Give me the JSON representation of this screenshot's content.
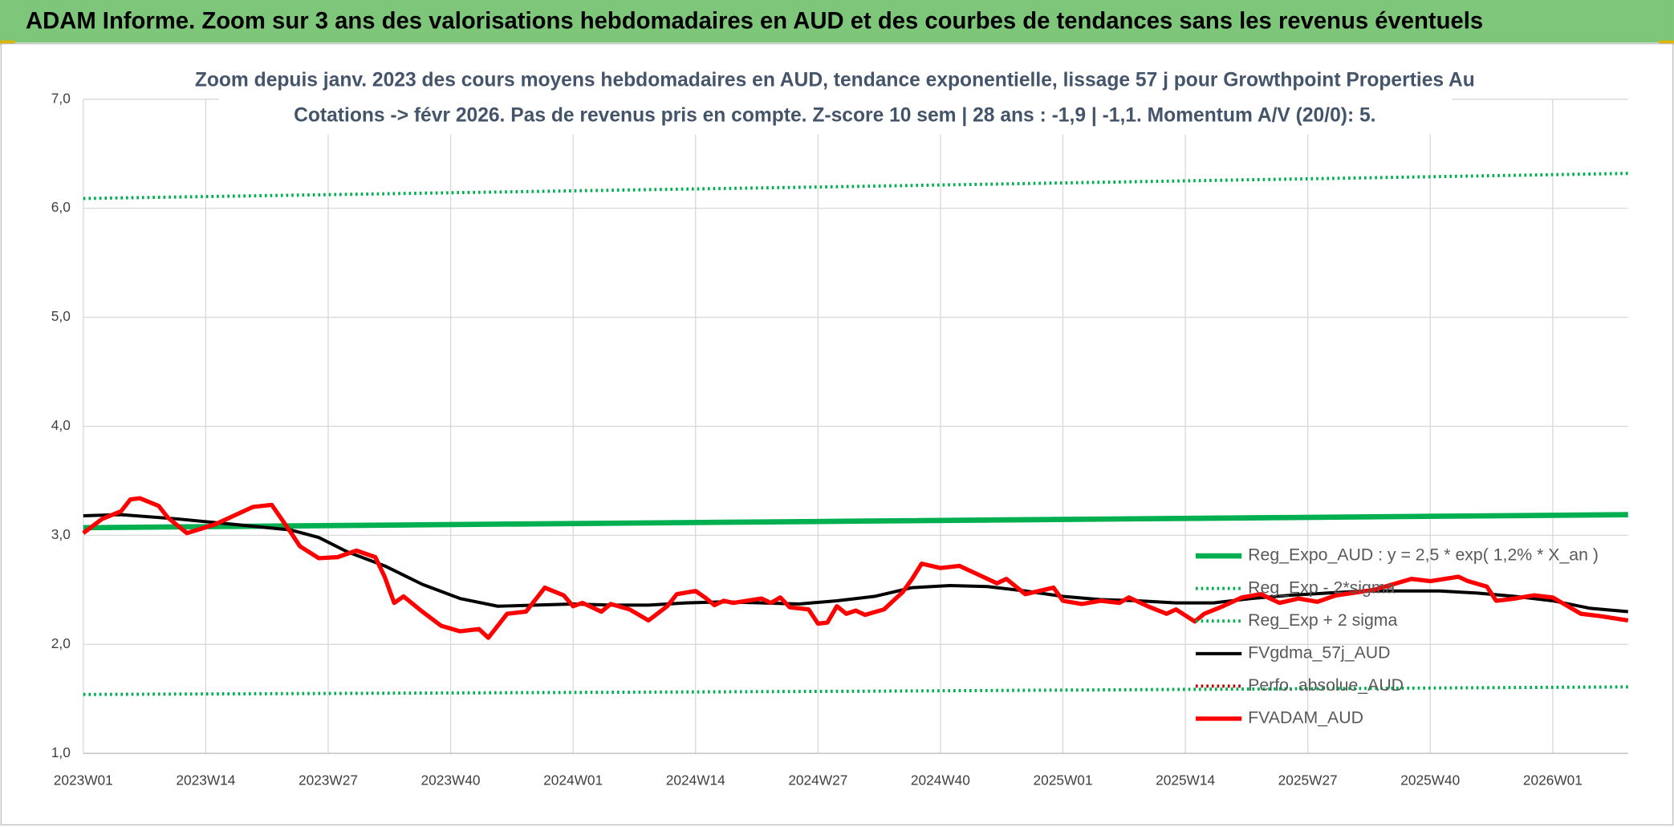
{
  "header": {
    "title": "ADAM Informe. Zoom sur 3 ans des valorisations hebdomadaires en AUD et des courbes de tendances sans les revenus éventuels"
  },
  "chart_data": {
    "type": "line",
    "title": "Zoom depuis janv. 2023 des cours moyens hebdomadaires en AUD, tendance exponentielle, lissage 57 j pour Growthpoint Properties Au",
    "subtitle": "Cotations -> févr 2026. Pas de revenus pris en compte. Z-score 10 sem | 28 ans : -1,9 | -1,1. Momentum A/V (20/0): 5.",
    "xlim": [
      0,
      164
    ],
    "xticks": [
      {
        "value": 0,
        "label": "2023W01"
      },
      {
        "value": 13,
        "label": "2023W14"
      },
      {
        "value": 26,
        "label": "2023W27"
      },
      {
        "value": 39,
        "label": "2023W40"
      },
      {
        "value": 52,
        "label": "2024W01"
      },
      {
        "value": 65,
        "label": "2024W14"
      },
      {
        "value": 78,
        "label": "2024W27"
      },
      {
        "value": 91,
        "label": "2024W40"
      },
      {
        "value": 104,
        "label": "2025W01"
      },
      {
        "value": 117,
        "label": "2025W14"
      },
      {
        "value": 130,
        "label": "2025W27"
      },
      {
        "value": 143,
        "label": "2025W40"
      },
      {
        "value": 156,
        "label": "2026W01"
      }
    ],
    "ylim": [
      1,
      7
    ],
    "yticks": [
      {
        "value": 1,
        "label": "1,0"
      },
      {
        "value": 2,
        "label": "2,0"
      },
      {
        "value": 3,
        "label": "3,0"
      },
      {
        "value": 4,
        "label": "4,0"
      },
      {
        "value": 5,
        "label": "5,0"
      },
      {
        "value": 6,
        "label": "6,0"
      },
      {
        "value": 7,
        "label": "7,0"
      }
    ],
    "grid": true,
    "legend": "right",
    "series": [
      {
        "name": "Reg_Expo_AUD : y = 2,5 * exp( 1,2% *  X_an )",
        "color": "#00b050",
        "style": "solid",
        "x": [
          0,
          82,
          164
        ],
        "values": [
          3.07,
          3.13,
          3.19
        ]
      },
      {
        "name": "Reg_Exp - 2*sigma",
        "color": "#00b050",
        "style": "dotted",
        "x": [
          0,
          82,
          164
        ],
        "values": [
          1.54,
          1.57,
          1.61
        ]
      },
      {
        "name": "Reg_Exp + 2 sigma",
        "color": "#00b050",
        "style": "dotted",
        "x": [
          0,
          82,
          164
        ],
        "values": [
          6.09,
          6.2,
          6.32
        ]
      },
      {
        "name": "FVgdma_57j_AUD",
        "color": "#000000",
        "style": "solid",
        "x": [
          0,
          4,
          10,
          16,
          22,
          25,
          28,
          32,
          36,
          40,
          44,
          48,
          52,
          56,
          60,
          64,
          68,
          72,
          76,
          80,
          84,
          88,
          92,
          96,
          100,
          104,
          108,
          112,
          116,
          120,
          124,
          128,
          132,
          136,
          140,
          144,
          148,
          152,
          156,
          160,
          164
        ],
        "values": [
          3.18,
          3.19,
          3.15,
          3.1,
          3.05,
          2.98,
          2.85,
          2.72,
          2.55,
          2.42,
          2.35,
          2.36,
          2.37,
          2.36,
          2.36,
          2.38,
          2.39,
          2.38,
          2.37,
          2.4,
          2.44,
          2.52,
          2.54,
          2.53,
          2.49,
          2.44,
          2.41,
          2.4,
          2.38,
          2.38,
          2.42,
          2.45,
          2.47,
          2.49,
          2.49,
          2.49,
          2.47,
          2.44,
          2.4,
          2.33,
          2.3
        ]
      },
      {
        "name": "Perfo. absolue_AUD",
        "color": "#c00000",
        "style": "dotted",
        "x": [],
        "values": []
      },
      {
        "name": "FVADAM_AUD",
        "color": "#ff0000",
        "style": "solid",
        "x": [
          0,
          2,
          4,
          5,
          6,
          8,
          9,
          11,
          14,
          18,
          20,
          22,
          23,
          25,
          27,
          29,
          31,
          32,
          33,
          34,
          36,
          38,
          40,
          42,
          43,
          45,
          47,
          49,
          51,
          52,
          53,
          55,
          56,
          58,
          60,
          62,
          63,
          65,
          66,
          67,
          68,
          69,
          72,
          73,
          74,
          75,
          77,
          78,
          79,
          80,
          81,
          82,
          83,
          85,
          87,
          88,
          89,
          91,
          93,
          95,
          97,
          98,
          100,
          103,
          104,
          106,
          108,
          110,
          111,
          113,
          115,
          116,
          118,
          119,
          121,
          123,
          125,
          127,
          129,
          131,
          133,
          137,
          141,
          143,
          146,
          147,
          149,
          150,
          152,
          154,
          156,
          157,
          159,
          161,
          164
        ],
        "values": [
          3.02,
          3.15,
          3.22,
          3.33,
          3.34,
          3.27,
          3.16,
          3.02,
          3.1,
          3.26,
          3.28,
          3.03,
          2.9,
          2.79,
          2.8,
          2.86,
          2.8,
          2.62,
          2.38,
          2.44,
          2.3,
          2.17,
          2.12,
          2.14,
          2.06,
          2.28,
          2.3,
          2.52,
          2.45,
          2.35,
          2.38,
          2.3,
          2.37,
          2.32,
          2.22,
          2.35,
          2.46,
          2.49,
          2.43,
          2.36,
          2.4,
          2.38,
          2.42,
          2.38,
          2.43,
          2.34,
          2.32,
          2.19,
          2.2,
          2.35,
          2.28,
          2.31,
          2.27,
          2.32,
          2.48,
          2.6,
          2.74,
          2.7,
          2.72,
          2.64,
          2.56,
          2.6,
          2.46,
          2.52,
          2.4,
          2.37,
          2.4,
          2.38,
          2.43,
          2.35,
          2.28,
          2.32,
          2.21,
          2.28,
          2.35,
          2.43,
          2.46,
          2.38,
          2.42,
          2.39,
          2.45,
          2.5,
          2.6,
          2.58,
          2.62,
          2.58,
          2.53,
          2.4,
          2.42,
          2.45,
          2.43,
          2.38,
          2.28,
          2.26,
          2.22
        ]
      }
    ]
  }
}
